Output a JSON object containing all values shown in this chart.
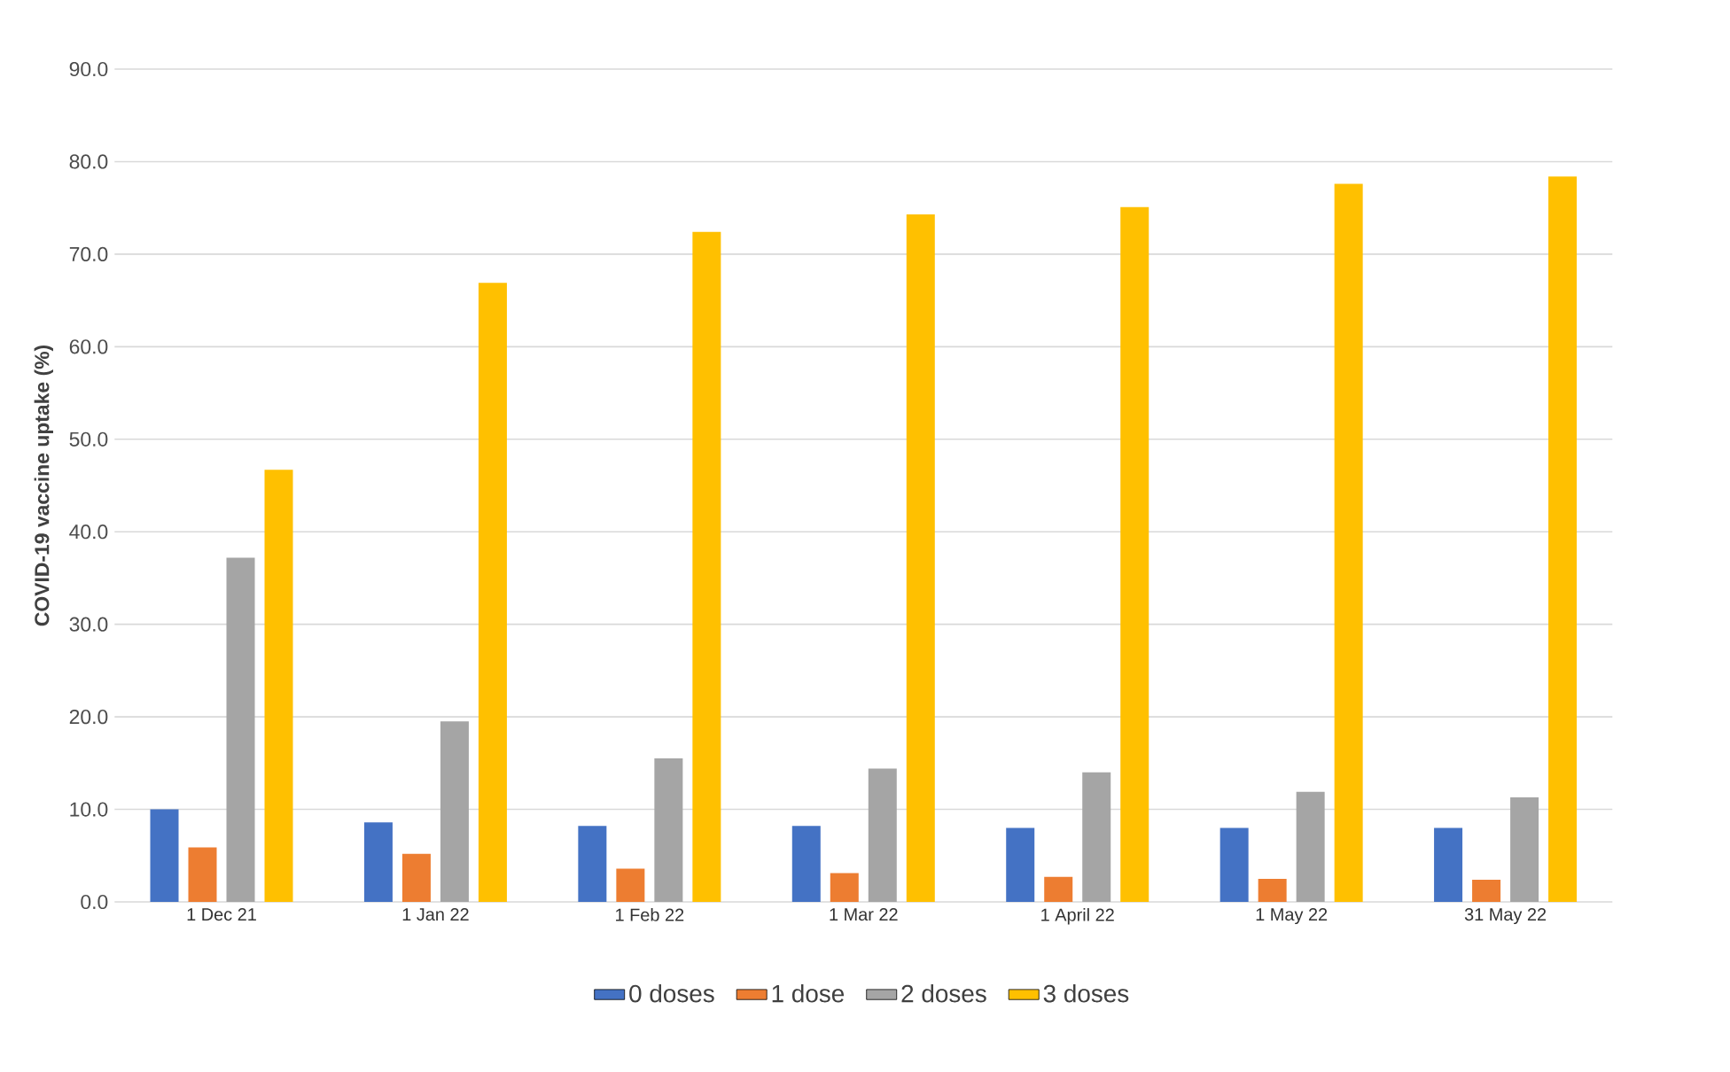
{
  "chart_data": {
    "type": "bar",
    "ylabel": "COVID-19 vaccine uptake (%)",
    "categories": [
      "1 Dec 21",
      "1 Jan 22",
      "1 Feb 22",
      "1 Mar 22",
      "1 April 22",
      "1 May 22",
      "31 May 22"
    ],
    "series": [
      {
        "name": "0 doses",
        "color": "#4472c4",
        "values": [
          10.0,
          8.6,
          8.2,
          8.2,
          8.0,
          8.0,
          8.0
        ]
      },
      {
        "name": "1 dose",
        "color": "#ed7d31",
        "values": [
          5.9,
          5.2,
          3.6,
          3.1,
          2.7,
          2.5,
          2.4
        ]
      },
      {
        "name": "2 doses",
        "color": "#a5a5a5",
        "values": [
          37.2,
          19.5,
          15.5,
          14.4,
          14.0,
          11.9,
          11.3
        ]
      },
      {
        "name": "3 doses",
        "color": "#ffc000",
        "values": [
          46.7,
          66.9,
          72.4,
          74.3,
          75.1,
          77.6,
          78.4
        ]
      }
    ],
    "ylim": [
      0,
      90
    ],
    "yticks": [
      {
        "value": 0,
        "label": "0.0"
      },
      {
        "value": 10,
        "label": "10.0"
      },
      {
        "value": 20,
        "label": "20.0"
      },
      {
        "value": 30,
        "label": "30.0"
      },
      {
        "value": 40,
        "label": "40.0"
      },
      {
        "value": 50,
        "label": "50.0"
      },
      {
        "value": 60,
        "label": "60.0"
      },
      {
        "value": 70,
        "label": "70.0"
      },
      {
        "value": 80,
        "label": "80.0"
      },
      {
        "value": 90,
        "label": "90.0"
      }
    ],
    "grid": "y",
    "legend": "bottom"
  }
}
